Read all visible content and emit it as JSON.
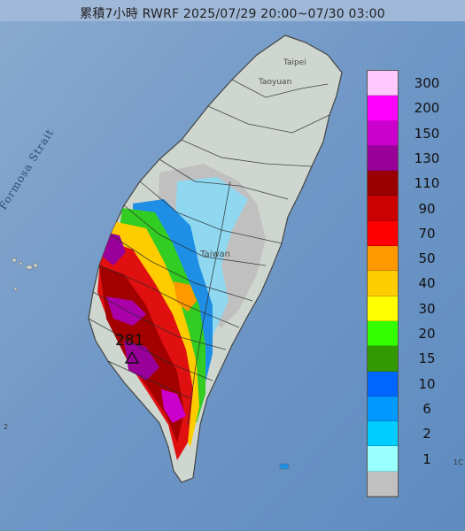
{
  "title": "累積7小時 RWRF 2025/07/29 20:00~07/30 03:00",
  "labels": {
    "strait": "Formosa Strait",
    "taipei": "Taipei",
    "taoyuan": "Taoyuan",
    "taiwan": "Taiwan",
    "edge_left": "2",
    "edge_right": "1C"
  },
  "max_value": "281",
  "legend": {
    "unit": "",
    "levels": [
      {
        "label": "300",
        "color": "#ffc8ff"
      },
      {
        "label": "200",
        "color": "#ff00ff"
      },
      {
        "label": "150",
        "color": "#cc00cc"
      },
      {
        "label": "130",
        "color": "#990099"
      },
      {
        "label": "110",
        "color": "#990000"
      },
      {
        "label": "90",
        "color": "#cc0000"
      },
      {
        "label": "70",
        "color": "#ff0000"
      },
      {
        "label": "50",
        "color": "#ff9900"
      },
      {
        "label": "40",
        "color": "#ffcc00"
      },
      {
        "label": "30",
        "color": "#ffff00"
      },
      {
        "label": "20",
        "color": "#33ff00"
      },
      {
        "label": "15",
        "color": "#339900"
      },
      {
        "label": "10",
        "color": "#0066ff"
      },
      {
        "label": "6",
        "color": "#0099ff"
      },
      {
        "label": "2",
        "color": "#00ccff"
      },
      {
        "label": "1",
        "color": "#99ffff"
      },
      {
        "label": "",
        "color": "#c0c0c0"
      }
    ]
  }
}
